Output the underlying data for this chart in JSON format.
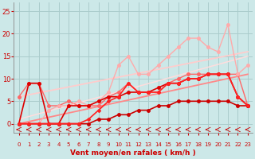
{
  "title": "",
  "xlabel": "Vent moyen/en rafales ( km/h )",
  "background_color": "#cce8e8",
  "grid_color": "#aacccc",
  "x_ticks": [
    0,
    1,
    2,
    3,
    4,
    5,
    6,
    7,
    8,
    9,
    10,
    11,
    12,
    13,
    14,
    15,
    16,
    17,
    18,
    19,
    20,
    21,
    22,
    23
  ],
  "y_ticks": [
    0,
    5,
    10,
    15,
    20,
    25
  ],
  "ylim": [
    -2,
    27
  ],
  "xlim": [
    -0.5,
    23.5
  ],
  "series": [
    {
      "x": [
        0,
        1,
        2,
        3,
        4,
        5,
        6,
        7,
        8,
        9,
        10,
        11,
        12,
        13,
        14,
        15,
        16,
        17,
        18,
        19,
        20,
        21,
        22,
        23
      ],
      "y": [
        0,
        0,
        0,
        0,
        0,
        0,
        0,
        0,
        1,
        1,
        2,
        2,
        3,
        3,
        4,
        4,
        5,
        5,
        5,
        5,
        5,
        5,
        4,
        4
      ],
      "color": "#cc0000",
      "lw": 1.2,
      "marker": "o",
      "ms": 2.5,
      "zorder": 4
    },
    {
      "x": [
        0,
        1,
        2,
        3,
        4,
        5,
        6,
        7,
        8,
        9,
        10,
        11,
        12,
        13,
        14,
        15,
        16,
        17,
        18,
        19,
        20,
        21,
        22,
        23
      ],
      "y": [
        0,
        9,
        9,
        0,
        0,
        4,
        4,
        4,
        5,
        6,
        6,
        7,
        7,
        7,
        8,
        9,
        9,
        10,
        10,
        11,
        11,
        11,
        6,
        4
      ],
      "color": "#dd0000",
      "lw": 1.2,
      "marker": "o",
      "ms": 2.5,
      "zorder": 4
    },
    {
      "x": [
        0,
        1,
        2,
        3,
        4,
        5,
        6,
        7,
        8,
        9,
        10,
        11,
        12,
        13,
        14,
        15,
        16,
        17,
        18,
        19,
        20,
        21,
        22,
        23
      ],
      "y": [
        0,
        0,
        0,
        0,
        0,
        0,
        0,
        1,
        3,
        5,
        6,
        9,
        7,
        7,
        7,
        9,
        9,
        10,
        10,
        11,
        11,
        11,
        6,
        4
      ],
      "color": "#ff2222",
      "lw": 1.2,
      "marker": "D",
      "ms": 2.0,
      "zorder": 4
    },
    {
      "x": [
        0,
        1,
        2,
        3,
        4,
        5,
        6,
        7,
        8,
        9,
        10,
        11,
        12,
        13,
        14,
        15,
        16,
        17,
        18,
        19,
        20,
        21,
        22,
        23
      ],
      "y": [
        6,
        9,
        9,
        4,
        4,
        5,
        4,
        4,
        4,
        6,
        7,
        9,
        7,
        7,
        7,
        9,
        10,
        11,
        11,
        11,
        11,
        11,
        11,
        4
      ],
      "color": "#ff6666",
      "lw": 1.0,
      "marker": "o",
      "ms": 2.5,
      "zorder": 3
    },
    {
      "x": [
        0,
        1,
        2,
        3,
        4,
        5,
        6,
        7,
        8,
        9,
        10,
        11,
        12,
        13,
        14,
        15,
        16,
        17,
        18,
        19,
        20,
        21,
        22,
        23
      ],
      "y": [
        0,
        0,
        0,
        3,
        4,
        4,
        5,
        4,
        5,
        7,
        13,
        15,
        11,
        11,
        13,
        15,
        17,
        19,
        19,
        17,
        16,
        22,
        11,
        13
      ],
      "color": "#ffaaaa",
      "lw": 1.0,
      "marker": "o",
      "ms": 2.5,
      "zorder": 3
    },
    {
      "x": [
        0,
        23
      ],
      "y": [
        0,
        11
      ],
      "color": "#ff8888",
      "lw": 1.3,
      "marker": null,
      "ms": 0,
      "zorder": 2
    },
    {
      "x": [
        0,
        23
      ],
      "y": [
        6,
        16
      ],
      "color": "#ffcccc",
      "lw": 1.3,
      "marker": null,
      "ms": 0,
      "zorder": 2
    },
    {
      "x": [
        0,
        23
      ],
      "y": [
        1,
        15
      ],
      "color": "#ffdddd",
      "lw": 1.1,
      "marker": null,
      "ms": 0,
      "zorder": 2
    }
  ],
  "xlabel_color": "#cc0000",
  "xlabel_fontsize": 6.5,
  "tick_color": "#cc0000",
  "tick_fontsize_x": 5,
  "tick_fontsize_y": 6
}
